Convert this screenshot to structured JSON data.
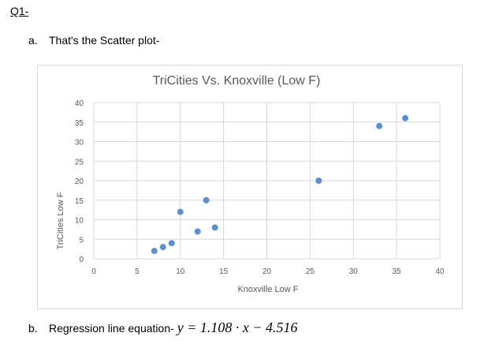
{
  "heading": "Q1-",
  "part_a": {
    "marker": "a.",
    "text": "That's the Scatter plot-"
  },
  "part_b": {
    "marker": "b.",
    "text": "Regression line equation-",
    "equation": "y = 1.108 · x − 4.516"
  },
  "chart_data": {
    "type": "scatter",
    "title": "TriCities Vs. Knoxville (Low F)",
    "xlabel": "Knoxville Low F",
    "ylabel": "TriCities Low F",
    "xlim": [
      0,
      40
    ],
    "ylim": [
      0,
      40
    ],
    "xticks": [
      "0",
      "5",
      "10",
      "15",
      "20",
      "25",
      "30",
      "35",
      "40"
    ],
    "yticks": [
      "0",
      "5",
      "10",
      "15",
      "20",
      "25",
      "30",
      "35",
      "40"
    ],
    "grid": true,
    "color": "#5b8fcf",
    "points": [
      [
        7,
        2
      ],
      [
        8,
        3
      ],
      [
        9,
        4
      ],
      [
        10,
        12
      ],
      [
        12,
        7
      ],
      [
        13,
        15
      ],
      [
        14,
        8
      ],
      [
        26,
        20
      ],
      [
        33,
        34
      ],
      [
        36,
        36
      ]
    ]
  }
}
